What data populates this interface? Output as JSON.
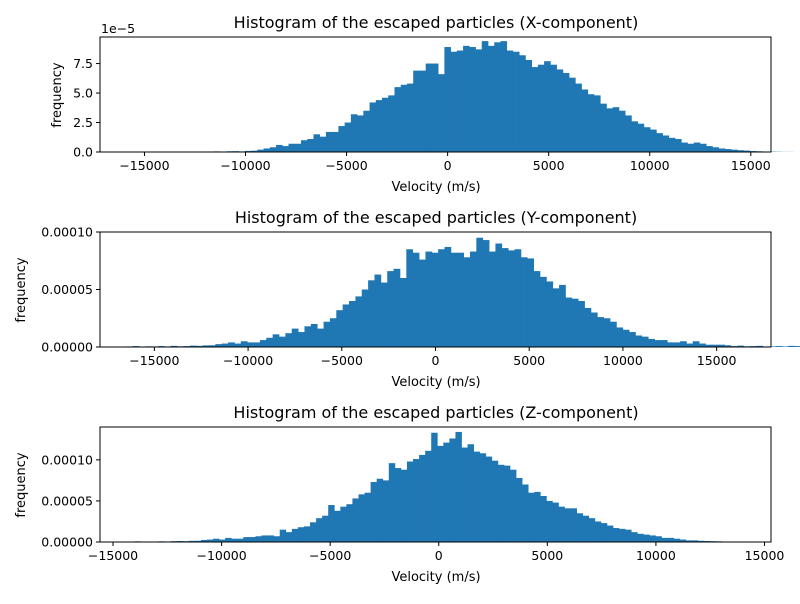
{
  "chart_data": [
    {
      "type": "bar",
      "title": "Histogram of the escaped particles (X-component)",
      "xlabel": "Velocity (m/s)",
      "ylabel": "frequency",
      "offset_text": "1e−5",
      "xlim": [
        -17200,
        16000
      ],
      "ylim": [
        0,
        9.75e-05
      ],
      "xticks": [
        -15000,
        -10000,
        -5000,
        0,
        5000,
        10000,
        15000
      ],
      "xtick_labels": [
        "−15000",
        "−10000",
        "−5000",
        "0",
        "5000",
        "10000",
        "15000"
      ],
      "yticks": [
        0,
        2.5e-05,
        5e-05,
        7.5e-05
      ],
      "ytick_labels": [
        "0.0",
        "2.5",
        "5.0",
        "7.5"
      ],
      "bar_color": "#1f77b4",
      "bin_start": -16200,
      "bin_width": 308.45,
      "values": [
        1e-07,
        1e-07,
        0.0,
        2e-07,
        1e-07,
        2e-07,
        1e-07,
        2e-07,
        2e-07,
        3e-07,
        2e-07,
        2e-07,
        4e-07,
        3e-07,
        4e-07,
        5e-07,
        3e-07,
        6e-07,
        7e-07,
        5e-07,
        9e-07,
        1.1e-06,
        2e-06,
        3e-06,
        4e-06,
        6e-06,
        5e-06,
        7e-06,
        7e-06,
        1e-05,
        1.1e-05,
        1.5e-05,
        1.3e-05,
        1.7e-05,
        1.7e-05,
        2.2e-05,
        2.5e-05,
        3.2e-05,
        3.1e-05,
        3.5e-05,
        4.2e-05,
        4.4e-05,
        4.6e-05,
        4.8e-05,
        5.5e-05,
        5.7e-05,
        5.8e-05,
        6.9e-05,
        6.9e-05,
        7.5e-05,
        7.5e-05,
        6.6e-05,
        8.9e-05,
        8.5e-05,
        8.6e-05,
        9e-05,
        8.9e-05,
        8.7e-05,
        9.4e-05,
        9e-05,
        9.3e-05,
        9.4e-05,
        8.6e-05,
        8.5e-05,
        8.2e-05,
        7.8e-05,
        7.2e-05,
        7.4e-05,
        7.7e-05,
        7.4e-05,
        7e-05,
        6.7e-05,
        6.3e-05,
        5.8e-05,
        5.3e-05,
        4.9e-05,
        4.8e-05,
        4.1e-05,
        3.7e-05,
        3.8e-05,
        3.5e-05,
        3.1e-05,
        2.6e-05,
        2.4e-05,
        2.1e-05,
        1.9e-05,
        1.6e-05,
        1.4e-05,
        1.2e-05,
        1.1e-05,
        8e-06,
        7e-06,
        8e-06,
        7e-06,
        5e-06,
        4e-06,
        3e-06,
        2.5e-06,
        2e-06,
        1.5e-06,
        1.2e-06,
        8e-07,
        6e-07,
        4e-07,
        3e-07,
        2e-07,
        1e-07,
        1e-07
      ]
    },
    {
      "type": "bar",
      "title": "Histogram of the escaped particles (Y-component)",
      "xlabel": "Velocity (m/s)",
      "ylabel": "frequency",
      "xlim": [
        -17900,
        17900
      ],
      "ylim": [
        0,
        0.0001
      ],
      "xticks": [
        -15000,
        -10000,
        -5000,
        0,
        5000,
        10000,
        15000
      ],
      "xtick_labels": [
        "−15000",
        "−10000",
        "−5000",
        "0",
        "5000",
        "10000",
        "15000"
      ],
      "yticks": [
        0,
        5e-05,
        0.0001
      ],
      "ytick_labels": [
        "0.00000",
        "0.00005",
        "0.00010"
      ],
      "bar_color": "#1f77b4",
      "bin_start": -16500,
      "bin_width": 339.62,
      "values": [
        5e-07,
        8e-07,
        3e-07,
        6e-07,
        5e-07,
        8e-07,
        5e-07,
        1e-06,
        6e-07,
        8e-07,
        1.2e-06,
        1e-06,
        1.4e-06,
        1.5e-06,
        2.5e-06,
        3e-06,
        4e-06,
        3e-06,
        5e-06,
        4e-06,
        4e-06,
        6e-06,
        8e-06,
        1.1e-05,
        9e-06,
        1.2e-05,
        1.6e-05,
        1.3e-05,
        1.8e-05,
        2e-05,
        1.6e-05,
        2.2e-05,
        2.5e-05,
        3.2e-05,
        3.7e-05,
        4e-05,
        4.4e-05,
        5e-05,
        5.8e-05,
        6.3e-05,
        5.6e-05,
        6.6e-05,
        6.8e-05,
        6e-05,
        8.5e-05,
        8.2e-05,
        7.6e-05,
        8.3e-05,
        8.2e-05,
        8.5e-05,
        8.7e-05,
        8.2e-05,
        8.2e-05,
        7.8e-05,
        8.3e-05,
        9.5e-05,
        9.3e-05,
        8.3e-05,
        9e-05,
        8.6e-05,
        8.4e-05,
        8.5e-05,
        7.8e-05,
        7.7e-05,
        6.6e-05,
        6.1e-05,
        5.7e-05,
        5.1e-05,
        5.4e-05,
        4.3e-05,
        4.2e-05,
        4e-05,
        3.4e-05,
        3e-05,
        2.6e-05,
        2.5e-05,
        2.2e-05,
        1.7e-05,
        1.5e-05,
        1.3e-05,
        1e-05,
        9e-06,
        7e-06,
        6e-06,
        6e-06,
        4e-06,
        4e-06,
        5e-06,
        3e-06,
        5e-06,
        3e-06,
        2e-06,
        2e-06,
        2e-06,
        1.5e-06,
        8e-07,
        1.2e-06,
        6e-07,
        8e-07,
        1e-06,
        5e-07,
        5e-07,
        8e-07,
        5e-07,
        1e-06,
        8e-07
      ]
    },
    {
      "type": "bar",
      "title": "Histogram of the escaped particles (Z-component)",
      "xlabel": "Velocity (m/s)",
      "ylabel": "frequency",
      "xlim": [
        -15600,
        15300
      ],
      "ylim": [
        0,
        0.00014
      ],
      "xticks": [
        -15000,
        -10000,
        -5000,
        0,
        5000,
        10000,
        15000
      ],
      "xtick_labels": [
        "−15000",
        "−10000",
        "−5000",
        "0",
        "5000",
        "10000",
        "15000"
      ],
      "yticks": [
        0,
        5e-05,
        0.0001
      ],
      "ytick_labels": [
        "0.00000",
        "0.00005",
        "0.00010"
      ],
      "bar_color": "#1f77b4",
      "bin_start": -14300,
      "bin_width": 279.05,
      "values": [
        5e-07,
        8e-07,
        3e-07,
        6e-07,
        5e-07,
        8e-07,
        5e-07,
        1e-06,
        1.2e-06,
        1e-06,
        1.4e-06,
        1.5e-06,
        2.5e-06,
        3e-06,
        4e-06,
        3e-06,
        5e-06,
        4e-06,
        4e-06,
        6e-06,
        6e-06,
        7e-06,
        8e-06,
        8e-06,
        7e-06,
        1.5e-05,
        1.2e-05,
        1.6e-05,
        1.8e-05,
        1.9e-05,
        2.4e-05,
        2.9e-05,
        3.2e-05,
        4.5e-05,
        3.8e-05,
        4.3e-05,
        4.6e-05,
        5.3e-05,
        5.8e-05,
        6e-05,
        7.3e-05,
        7.7e-05,
        7.5e-05,
        9.6e-05,
        9e-05,
        8.8e-05,
        9.8e-05,
        0.000101,
        0.000106,
        0.000111,
        0.000133,
        0.000117,
        0.000121,
        0.000126,
        0.000134,
        0.000115,
        0.000119,
        0.00011,
        0.000108,
        0.000104,
        9.9e-05,
        9.4e-05,
        9.3e-05,
        8.8e-05,
        7.8e-05,
        7e-05,
        6e-05,
        6.1e-05,
        5.6e-05,
        5e-05,
        4.8e-05,
        4.3e-05,
        4.1e-05,
        4.1e-05,
        3.5e-05,
        3.2e-05,
        2.9e-05,
        2.5e-05,
        2.3e-05,
        2e-05,
        1.7e-05,
        1.6e-05,
        1.5e-05,
        1.2e-05,
        1e-05,
        9e-06,
        8e-06,
        7e-06,
        5e-06,
        5e-06,
        4e-06,
        3e-06,
        2e-06,
        2e-06,
        1.5e-06,
        1.2e-06,
        1e-06,
        8e-07,
        6e-07,
        5e-07,
        4e-07,
        3e-07,
        2e-07,
        1e-07
      ]
    }
  ]
}
